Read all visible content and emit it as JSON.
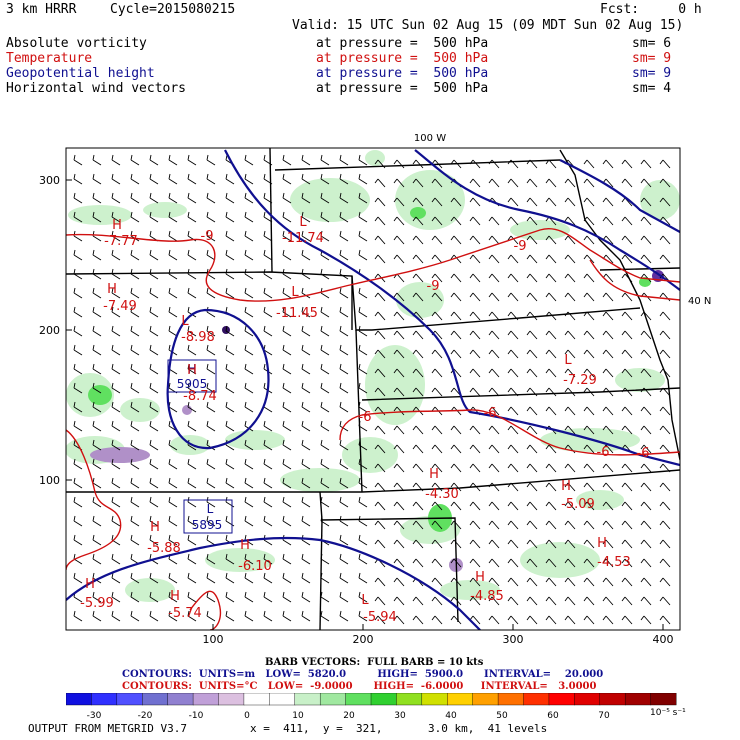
{
  "header": {
    "model": "3 km HRRR",
    "cycle": "Cycle=2015080215",
    "fcst": "Fcst:     0 h",
    "valid": "Valid: 15 UTC Sun 02 Aug 15 (09 MDT Sun 02 Aug 15)"
  },
  "fields": [
    {
      "name": "Absolute vorticity",
      "level": "at pressure =  500 hPa",
      "sm": "sm= 6",
      "color": "#000000"
    },
    {
      "name": "Temperature",
      "level": "at pressure =  500 hPa",
      "sm": "sm= 9",
      "color": "#d01010"
    },
    {
      "name": "Geopotential height",
      "level": "at pressure =  500 hPa",
      "sm": "sm= 9",
      "color": "#101090"
    },
    {
      "name": "Horizontal wind vectors",
      "level": "at pressure =  500 hPa",
      "sm": "sm= 4",
      "color": "#000000"
    }
  ],
  "map": {
    "lon_label": "100 W",
    "lat_label": "40 N",
    "x_ticks": [
      "100",
      "200",
      "300",
      "400"
    ],
    "y_ticks": [
      "100",
      "200",
      "300"
    ],
    "height_labels": [
      {
        "kind": "H",
        "value": "5905"
      },
      {
        "kind": "L",
        "value": "5895"
      }
    ],
    "temp_labels": [
      {
        "kind": "H",
        "value": "-7.77"
      },
      {
        "kind": "H",
        "value": "-7.49"
      },
      {
        "kind": "L",
        "value": "-8.98"
      },
      {
        "kind": "H",
        "value": "-8.74"
      },
      {
        "kind": "L",
        "value": "-11.74"
      },
      {
        "kind": "L",
        "value": "-11.45"
      },
      {
        "kind": "L",
        "value": "-7.29"
      },
      {
        "kind": "H",
        "value": "-4.30"
      },
      {
        "kind": "H",
        "value": "-5.09"
      },
      {
        "kind": "H",
        "value": "-4.53"
      },
      {
        "kind": "H",
        "value": "-5.88"
      },
      {
        "kind": "H",
        "value": "-6.10"
      },
      {
        "kind": "H",
        "value": "-5.99"
      },
      {
        "kind": "H",
        "value": "-5.74"
      },
      {
        "kind": "H",
        "value": "-4.85"
      },
      {
        "kind": "L",
        "value": "-5.94"
      }
    ],
    "contour_labels": [
      "-9",
      "-9",
      "-9",
      "-6",
      "-6",
      "-6",
      "-6"
    ]
  },
  "legend": {
    "barb": "BARB VECTORS:  FULL BARB = 10 kts",
    "contours_blue": "CONTOURS:  UNITS=m   LOW=  5820.0         HIGH=  5900.0      INTERVAL=    20.000",
    "contours_red": "CONTOURS:  UNITS=°C   LOW=  -9.0000      HIGH=  -6.0000     INTERVAL=   3.0000"
  },
  "colorbar": {
    "labels": [
      "-30",
      "-20",
      "-10",
      "0",
      "10",
      "20",
      "30",
      "40",
      "50",
      "60",
      "70"
    ],
    "unit": "10⁻⁵ s⁻¹",
    "colors": [
      "#1010e0",
      "#3030ff",
      "#5050ff",
      "#7070d0",
      "#9080d0",
      "#c0a0d8",
      "#dcc0e0",
      "#ffffff",
      "#ffffff",
      "#c8f0c8",
      "#a0e8a0",
      "#60e060",
      "#30d030",
      "#90e020",
      "#d0e000",
      "#ffd000",
      "#ffa000",
      "#ff7000",
      "#ff3000",
      "#ff0000",
      "#e00000",
      "#c00000",
      "#a00000",
      "#800000"
    ]
  },
  "footer": {
    "left": "OUTPUT FROM METGRID V3.7",
    "coords": "x =  411,  y =  321,",
    "res": "3.0 km,  41 levels"
  }
}
